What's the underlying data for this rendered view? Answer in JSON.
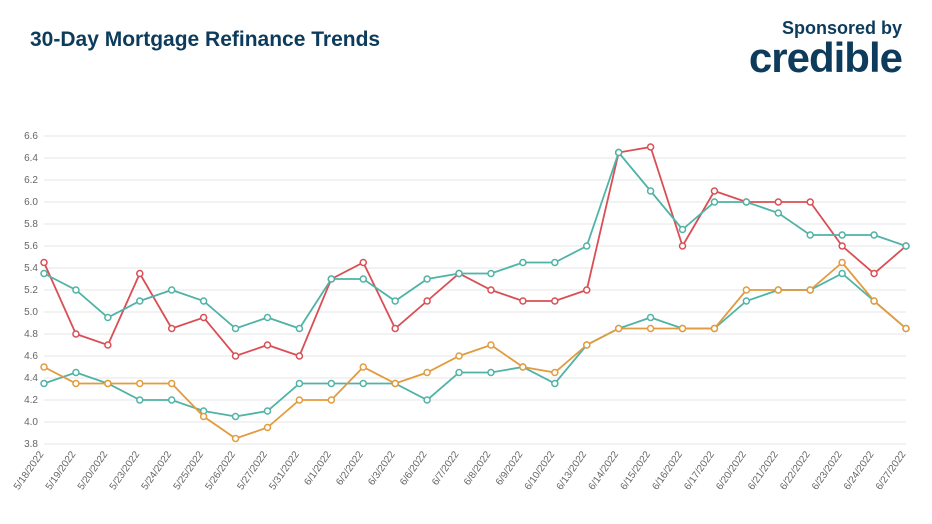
{
  "header": {
    "title": "30-Day Mortgage Refinance Trends",
    "sponsor_label": "Sponsored by",
    "sponsor_logo": "credible"
  },
  "chart": {
    "type": "line",
    "ylim": [
      3.8,
      6.6
    ],
    "ytick_step": 0.2,
    "background_color": "#ffffff",
    "grid_color": "#e5e5e5",
    "axis_label_color": "#666666",
    "axis_label_fontsize": 10,
    "line_width": 1.8,
    "marker_radius": 3,
    "categories": [
      "5/18/2022",
      "5/19/2022",
      "5/20/2022",
      "5/23/2022",
      "5/24/2022",
      "5/25/2022",
      "5/26/2022",
      "5/27/2022",
      "5/31/2022",
      "6/1/2022",
      "6/2/2022",
      "6/3/2022",
      "6/6/2022",
      "6/7/2022",
      "6/8/2022",
      "6/9/2022",
      "6/10/2022",
      "6/13/2022",
      "6/14/2022",
      "6/15/2022",
      "6/16/2022",
      "6/17/2022",
      "6/20/2022",
      "6/21/2022",
      "6/22/2022",
      "6/23/2022",
      "6/24/2022",
      "6/27/2022"
    ],
    "series": [
      {
        "name": "series-red",
        "color": "#d94f55",
        "values": [
          5.45,
          4.8,
          4.7,
          5.35,
          4.85,
          4.95,
          4.6,
          4.7,
          4.6,
          5.3,
          5.45,
          4.85,
          5.1,
          5.35,
          5.2,
          5.1,
          5.1,
          5.2,
          6.45,
          6.5,
          5.6,
          6.1,
          6.0,
          6.0,
          6.0,
          5.6,
          5.35,
          5.6
        ]
      },
      {
        "name": "series-teal-upper",
        "color": "#4fb3a5",
        "values": [
          5.35,
          5.2,
          4.95,
          5.1,
          5.2,
          5.1,
          4.85,
          4.95,
          4.85,
          5.3,
          5.3,
          5.1,
          5.3,
          5.35,
          5.35,
          5.45,
          5.45,
          5.6,
          6.45,
          6.1,
          5.75,
          6.0,
          6.0,
          5.9,
          5.7,
          5.7,
          5.7,
          5.6
        ]
      },
      {
        "name": "series-teal-lower",
        "color": "#4fb3a5",
        "values": [
          4.35,
          4.45,
          4.35,
          4.2,
          4.2,
          4.1,
          4.05,
          4.1,
          4.35,
          4.35,
          4.35,
          4.35,
          4.2,
          4.45,
          4.45,
          4.5,
          4.35,
          4.7,
          4.85,
          4.95,
          4.85,
          4.85,
          5.1,
          5.2,
          5.2,
          5.35,
          5.1,
          4.85
        ]
      },
      {
        "name": "series-orange",
        "color": "#e29b3e",
        "values": [
          4.5,
          4.35,
          4.35,
          4.35,
          4.35,
          4.05,
          3.85,
          3.95,
          4.2,
          4.2,
          4.5,
          4.35,
          4.45,
          4.6,
          4.7,
          4.5,
          4.45,
          4.7,
          4.85,
          4.85,
          4.85,
          4.85,
          5.2,
          5.2,
          5.2,
          5.45,
          5.1,
          4.85
        ]
      }
    ]
  }
}
